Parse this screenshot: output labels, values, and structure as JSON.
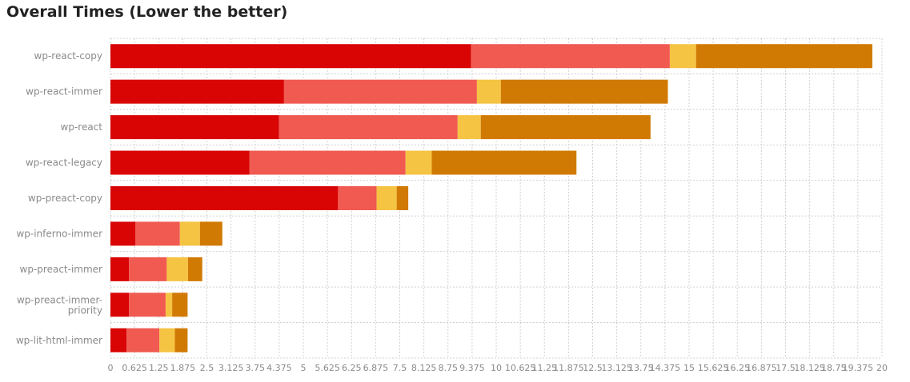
{
  "chart_data": {
    "type": "bar",
    "orientation": "horizontal",
    "stacked": true,
    "title": "Overall Times (Lower the better)",
    "categories": [
      "wp-react-copy",
      "wp-react-immer",
      "wp-react",
      "wp-react-legacy",
      "wp-preact-copy",
      "wp-inferno-immer",
      "wp-preact-immer",
      "wp-preact-immer-priority",
      "wp-lit-html-immer"
    ],
    "series": [
      {
        "color": "#d90505",
        "values": [
          9.35,
          4.5,
          4.37,
          3.6,
          5.9,
          0.65,
          0.48,
          0.48,
          0.42
        ]
      },
      {
        "color": "#f05a51",
        "values": [
          5.15,
          5.0,
          4.63,
          4.05,
          1.0,
          1.15,
          0.98,
          0.95,
          0.85
        ]
      },
      {
        "color": "#f5c443",
        "values": [
          0.68,
          0.62,
          0.6,
          0.68,
          0.52,
          0.52,
          0.55,
          0.17,
          0.4
        ]
      },
      {
        "color": "#d17a03",
        "values": [
          4.57,
          4.33,
          4.4,
          3.75,
          0.3,
          0.58,
          0.37,
          0.4,
          0.33
        ]
      }
    ],
    "xlim": [
      0,
      20
    ],
    "xticks": [
      "0",
      "0.625",
      "1.25",
      "1.875",
      "2.5",
      "3.125",
      "3.75",
      "4.375",
      "5",
      "5.625",
      "6.25",
      "6.875",
      "7.5",
      "8.125",
      "8.75",
      "9.375",
      "10",
      "10.625",
      "11.25",
      "11.875",
      "12.5",
      "13.125",
      "13.75",
      "14.375",
      "15",
      "15.625",
      "16.25",
      "16.875",
      "17.5",
      "18.125",
      "18.75",
      "19.375",
      "20"
    ],
    "grid": true,
    "legend": "none"
  }
}
